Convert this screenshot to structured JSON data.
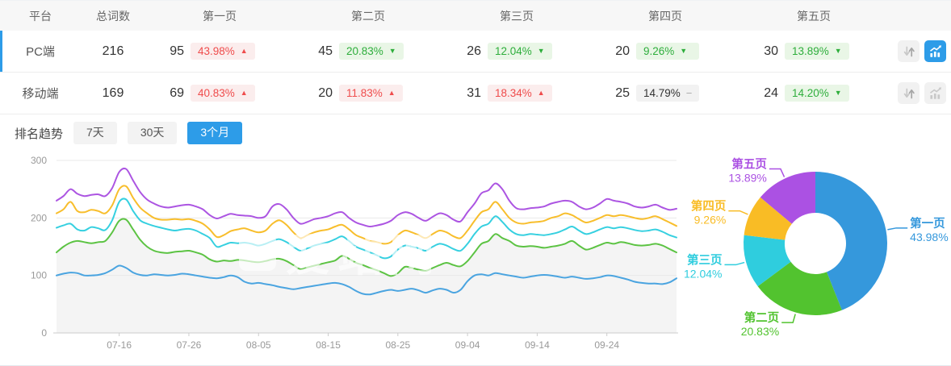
{
  "colors": {
    "accent": "#2D9CE8",
    "badge_red_text": "#EF4C4C",
    "badge_red_bg": "#FBEDED",
    "badge_green_text": "#2EAE3C",
    "badge_green_bg": "#E9F6E6",
    "badge_gray_text": "#333333",
    "badge_gray_bg": "#F2F2F2",
    "grid": "#E9E9E9",
    "axis": "#CCCCCC",
    "tick_text": "#999999"
  },
  "table": {
    "headers": [
      "平台",
      "总词数",
      "第一页",
      "第二页",
      "第三页",
      "第四页",
      "第五页"
    ],
    "rows": [
      {
        "platform": "PC端",
        "total": "216",
        "selected": true,
        "chart_active": true,
        "pages": [
          {
            "count": "95",
            "pct": "43.98%",
            "dir": "up",
            "tone": "red"
          },
          {
            "count": "45",
            "pct": "20.83%",
            "dir": "down",
            "tone": "green"
          },
          {
            "count": "26",
            "pct": "12.04%",
            "dir": "down",
            "tone": "green"
          },
          {
            "count": "20",
            "pct": "9.26%",
            "dir": "down",
            "tone": "green"
          },
          {
            "count": "30",
            "pct": "13.89%",
            "dir": "down",
            "tone": "green"
          }
        ]
      },
      {
        "platform": "移动端",
        "total": "169",
        "selected": false,
        "chart_active": false,
        "pages": [
          {
            "count": "69",
            "pct": "40.83%",
            "dir": "up",
            "tone": "red"
          },
          {
            "count": "20",
            "pct": "11.83%",
            "dir": "up",
            "tone": "red"
          },
          {
            "count": "31",
            "pct": "18.34%",
            "dir": "up",
            "tone": "red"
          },
          {
            "count": "25",
            "pct": "14.79%",
            "dir": "flat",
            "tone": "gray"
          },
          {
            "count": "24",
            "pct": "14.20%",
            "dir": "down",
            "tone": "green"
          }
        ]
      }
    ]
  },
  "trend": {
    "title": "排名趋势",
    "tabs": [
      {
        "label": "7天",
        "active": false
      },
      {
        "label": "30天",
        "active": false
      },
      {
        "label": "3个月",
        "active": true
      }
    ]
  },
  "watermark": "爱站网",
  "chart_data": [
    {
      "type": "line",
      "title": "排名趋势（3个月）",
      "x_start": "07-07",
      "x_end": "10-04",
      "x_tick_labels": [
        "07-16",
        "07-26",
        "08-05",
        "08-15",
        "08-25",
        "09-04",
        "09-14",
        "09-24"
      ],
      "x_tick_indices": [
        9,
        19,
        29,
        39,
        49,
        59,
        69,
        79
      ],
      "ylim": [
        0,
        300
      ],
      "yticks": [
        0,
        100,
        200,
        300
      ],
      "grid": true,
      "legend": "none",
      "area_fill_series": "第二页",
      "area_fill_color": "#F4F4F4",
      "series": [
        {
          "name": "第一页",
          "color": "#4AA4E0",
          "values": [
            100,
            103,
            105,
            104,
            100,
            100,
            101,
            104,
            110,
            117,
            113,
            105,
            101,
            100,
            102,
            101,
            100,
            101,
            103,
            102,
            100,
            98,
            96,
            95,
            97,
            100,
            97,
            89,
            86,
            87,
            85,
            83,
            80,
            78,
            76,
            78,
            80,
            82,
            84,
            86,
            87,
            85,
            80,
            73,
            68,
            67,
            70,
            73,
            75,
            73,
            75,
            77,
            74,
            70,
            74,
            77,
            75,
            70,
            75,
            90,
            100,
            102,
            100,
            104,
            102,
            100,
            98,
            96,
            98,
            100,
            101,
            100,
            98,
            96,
            98,
            96,
            94,
            95,
            97,
            100,
            99,
            96,
            93,
            89,
            87,
            86,
            86,
            85,
            88,
            95
          ]
        },
        {
          "name": "第二页",
          "color": "#5CC343",
          "values": [
            140,
            150,
            157,
            160,
            158,
            156,
            158,
            160,
            175,
            195,
            197,
            180,
            162,
            150,
            143,
            140,
            139,
            141,
            142,
            143,
            140,
            136,
            128,
            124,
            126,
            125,
            127,
            126,
            124,
            123,
            125,
            128,
            129,
            125,
            118,
            111,
            114,
            117,
            120,
            123,
            126,
            134,
            129,
            122,
            118,
            113,
            109,
            104,
            99,
            104,
            115,
            113,
            110,
            108,
            113,
            118,
            122,
            118,
            116,
            125,
            140,
            155,
            160,
            172,
            165,
            160,
            152,
            150,
            151,
            150,
            148,
            150,
            152,
            155,
            160,
            152,
            145,
            148,
            153,
            157,
            155,
            158,
            156,
            153,
            152,
            153,
            155,
            152,
            146,
            140
          ]
        },
        {
          "name": "第三页",
          "color": "#36D0E0",
          "values": [
            183,
            187,
            190,
            180,
            178,
            184,
            182,
            179,
            196,
            228,
            232,
            212,
            196,
            190,
            186,
            183,
            180,
            178,
            180,
            181,
            178,
            172,
            165,
            150,
            153,
            157,
            156,
            157,
            155,
            152,
            155,
            160,
            163,
            158,
            150,
            143,
            147,
            152,
            155,
            158,
            163,
            168,
            160,
            150,
            145,
            140,
            135,
            130,
            133,
            145,
            152,
            150,
            147,
            143,
            150,
            155,
            152,
            146,
            143,
            155,
            172,
            185,
            190,
            203,
            193,
            180,
            172,
            170,
            172,
            171,
            170,
            172,
            175,
            180,
            185,
            178,
            172,
            175,
            180,
            184,
            182,
            184,
            182,
            179,
            177,
            178,
            180,
            176,
            170,
            166
          ]
        },
        {
          "name": "第四页",
          "color": "#F8BE2C",
          "values": [
            208,
            215,
            228,
            212,
            210,
            214,
            212,
            208,
            222,
            250,
            255,
            235,
            218,
            208,
            200,
            197,
            197,
            198,
            197,
            198,
            195,
            190,
            180,
            167,
            170,
            177,
            180,
            182,
            178,
            175,
            178,
            190,
            196,
            188,
            175,
            165,
            170,
            175,
            178,
            180,
            185,
            188,
            180,
            170,
            165,
            160,
            158,
            155,
            158,
            170,
            178,
            175,
            170,
            165,
            172,
            178,
            175,
            168,
            165,
            178,
            195,
            210,
            215,
            228,
            215,
            200,
            192,
            190,
            192,
            193,
            195,
            200,
            203,
            208,
            205,
            198,
            192,
            195,
            200,
            205,
            203,
            205,
            203,
            200,
            198,
            200,
            203,
            198,
            192,
            186
          ]
        },
        {
          "name": "第五页",
          "color": "#AC55E2",
          "values": [
            230,
            238,
            250,
            242,
            238,
            240,
            241,
            238,
            252,
            280,
            285,
            265,
            245,
            232,
            225,
            220,
            218,
            220,
            222,
            223,
            220,
            215,
            205,
            199,
            203,
            207,
            205,
            204,
            203,
            200,
            203,
            220,
            224,
            215,
            200,
            190,
            193,
            198,
            200,
            203,
            208,
            210,
            200,
            192,
            188,
            185,
            187,
            190,
            195,
            205,
            210,
            207,
            200,
            195,
            202,
            208,
            205,
            197,
            194,
            210,
            225,
            243,
            248,
            260,
            250,
            230,
            217,
            215,
            217,
            218,
            220,
            225,
            228,
            230,
            228,
            220,
            215,
            218,
            225,
            233,
            230,
            228,
            225,
            220,
            218,
            220,
            223,
            218,
            214,
            216
          ]
        }
      ]
    },
    {
      "type": "pie",
      "subtype": "donut",
      "start_angle": "top",
      "direction": "clockwise",
      "inner_radius_ratio": 0.43,
      "labels": [
        "第一页",
        "第二页",
        "第三页",
        "第四页",
        "第五页"
      ],
      "values": [
        43.98,
        20.83,
        12.04,
        9.26,
        13.89
      ],
      "value_suffix": "%",
      "colors": [
        "#3598DC",
        "#52C32F",
        "#2FCDDE",
        "#F9BC25",
        "#AB51E3"
      ]
    }
  ]
}
